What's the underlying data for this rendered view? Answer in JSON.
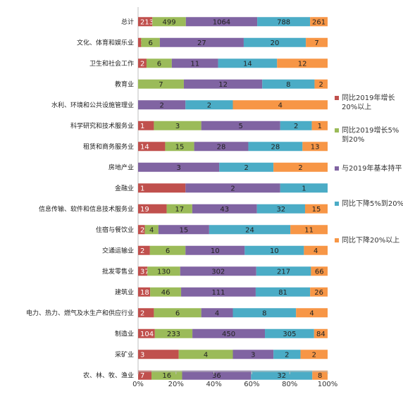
{
  "chart_data": {
    "type": "bar",
    "orientation": "horizontal",
    "stacked": "percent",
    "title": "",
    "xlabel": "",
    "ylabel": "",
    "xlim": [
      0,
      100
    ],
    "xticks": [
      "0%",
      "20%",
      "40%",
      "60%",
      "80%",
      "100%"
    ],
    "grid": false,
    "legend_position": "right",
    "categories": [
      "总计",
      "文化、体育和娱乐业",
      "卫生和社会工作",
      "教育业",
      "水利、环境和公共设施管理业",
      "科学研究和技术服务业",
      "租赁和商务服务业",
      "房地产业",
      "金融业",
      "信息传输、软件和信息技术服务业",
      "住宿与餐饮业",
      "交通运输业",
      "批发零售业",
      "建筑业",
      "电力、热力、燃气及水生产和供应行业",
      "制造业",
      "采矿业",
      "农、林、牧、渔业"
    ],
    "series": [
      {
        "name": "同比2019年增长20%以上",
        "color": "#c0504d",
        "values": [
          213,
          1,
          2,
          0,
          0,
          1,
          14,
          0,
          1,
          19,
          2,
          2,
          37,
          18,
          2,
          104,
          3,
          7
        ]
      },
      {
        "name": "同比2019增长5%到20%",
        "color": "#9bbb59",
        "values": [
          499,
          6,
          6,
          7,
          0,
          3,
          15,
          0,
          0,
          17,
          4,
          6,
          130,
          46,
          6,
          233,
          4,
          16
        ]
      },
      {
        "name": "与2019年基本持平",
        "color": "#8064a2",
        "values": [
          1064,
          27,
          11,
          12,
          2,
          5,
          28,
          3,
          2,
          43,
          15,
          10,
          302,
          111,
          4,
          450,
          3,
          36
        ]
      },
      {
        "name": "同比下降5%到20%",
        "color": "#4bacc6",
        "values": [
          788,
          20,
          14,
          8,
          2,
          2,
          28,
          2,
          1,
          32,
          24,
          10,
          217,
          81,
          8,
          305,
          2,
          32
        ]
      },
      {
        "name": "同比下降20%以上",
        "color": "#f79646",
        "values": [
          261,
          7,
          12,
          2,
          4,
          1,
          13,
          2,
          0,
          15,
          11,
          4,
          66,
          26,
          4,
          84,
          2,
          8
        ]
      }
    ]
  }
}
